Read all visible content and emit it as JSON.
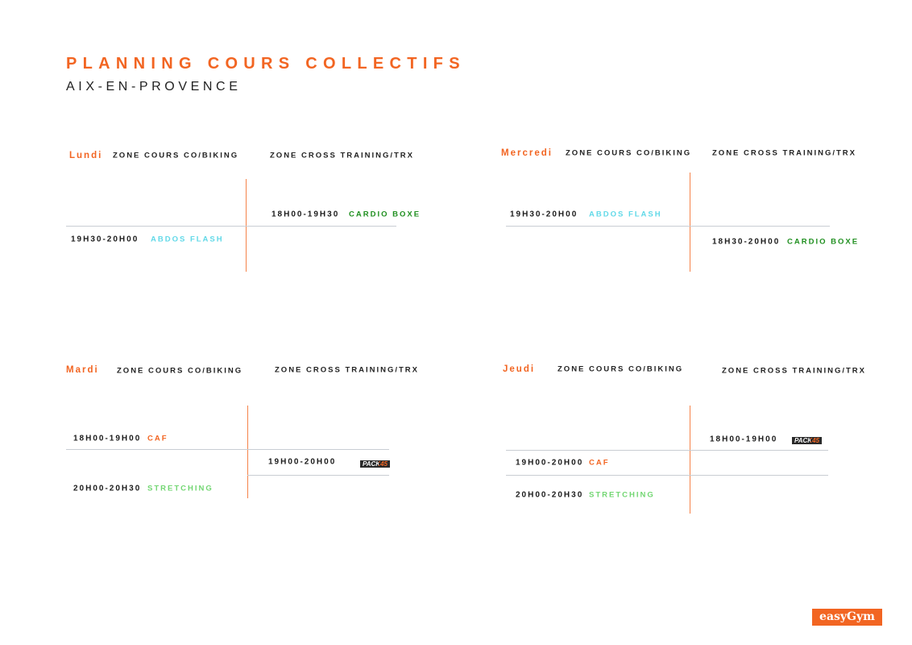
{
  "title": "PLANNING COURS COLLECTIFS",
  "subtitle": "AIX-EN-PROVENCE",
  "zones": {
    "biking": "ZONE COURS CO/BIKING",
    "cross": "ZONE CROSS TRAINING/TRX"
  },
  "lundi": {
    "day": "Lundi",
    "sessions": [
      {
        "time": "18H00-19H30",
        "name": "CARDIO BOXE"
      },
      {
        "time": "19H30-20H00",
        "name": "ABDOS FLASH"
      }
    ]
  },
  "mercredi": {
    "day": "Mercredi",
    "sessions": [
      {
        "time": "19H30-20H00",
        "name": "ABDOS FLASH"
      },
      {
        "time": "18H30-20H00",
        "name": "CARDIO BOXE"
      }
    ]
  },
  "mardi": {
    "day": "Mardi",
    "sessions": [
      {
        "time": "18H00-19H00",
        "name": "CAF"
      },
      {
        "time": "19H00-20H00",
        "name": "PACK45"
      },
      {
        "time": "20H00-20H30",
        "name": "STRETCHING"
      }
    ]
  },
  "jeudi": {
    "day": "Jeudi",
    "sessions": [
      {
        "time": "18H00-19H00",
        "name": "PACK45"
      },
      {
        "time": "19H00-20H00",
        "name": "CAF"
      },
      {
        "time": "20H00-20H30",
        "name": "STRETCHING"
      }
    ]
  },
  "pack": {
    "a": "PACK",
    "b": "45"
  },
  "logo": "easyGym",
  "colors": {
    "accent": "#f26522",
    "cardio": "#1f8f1f",
    "abdos": "#62d9e8",
    "stretching": "#72d672"
  }
}
